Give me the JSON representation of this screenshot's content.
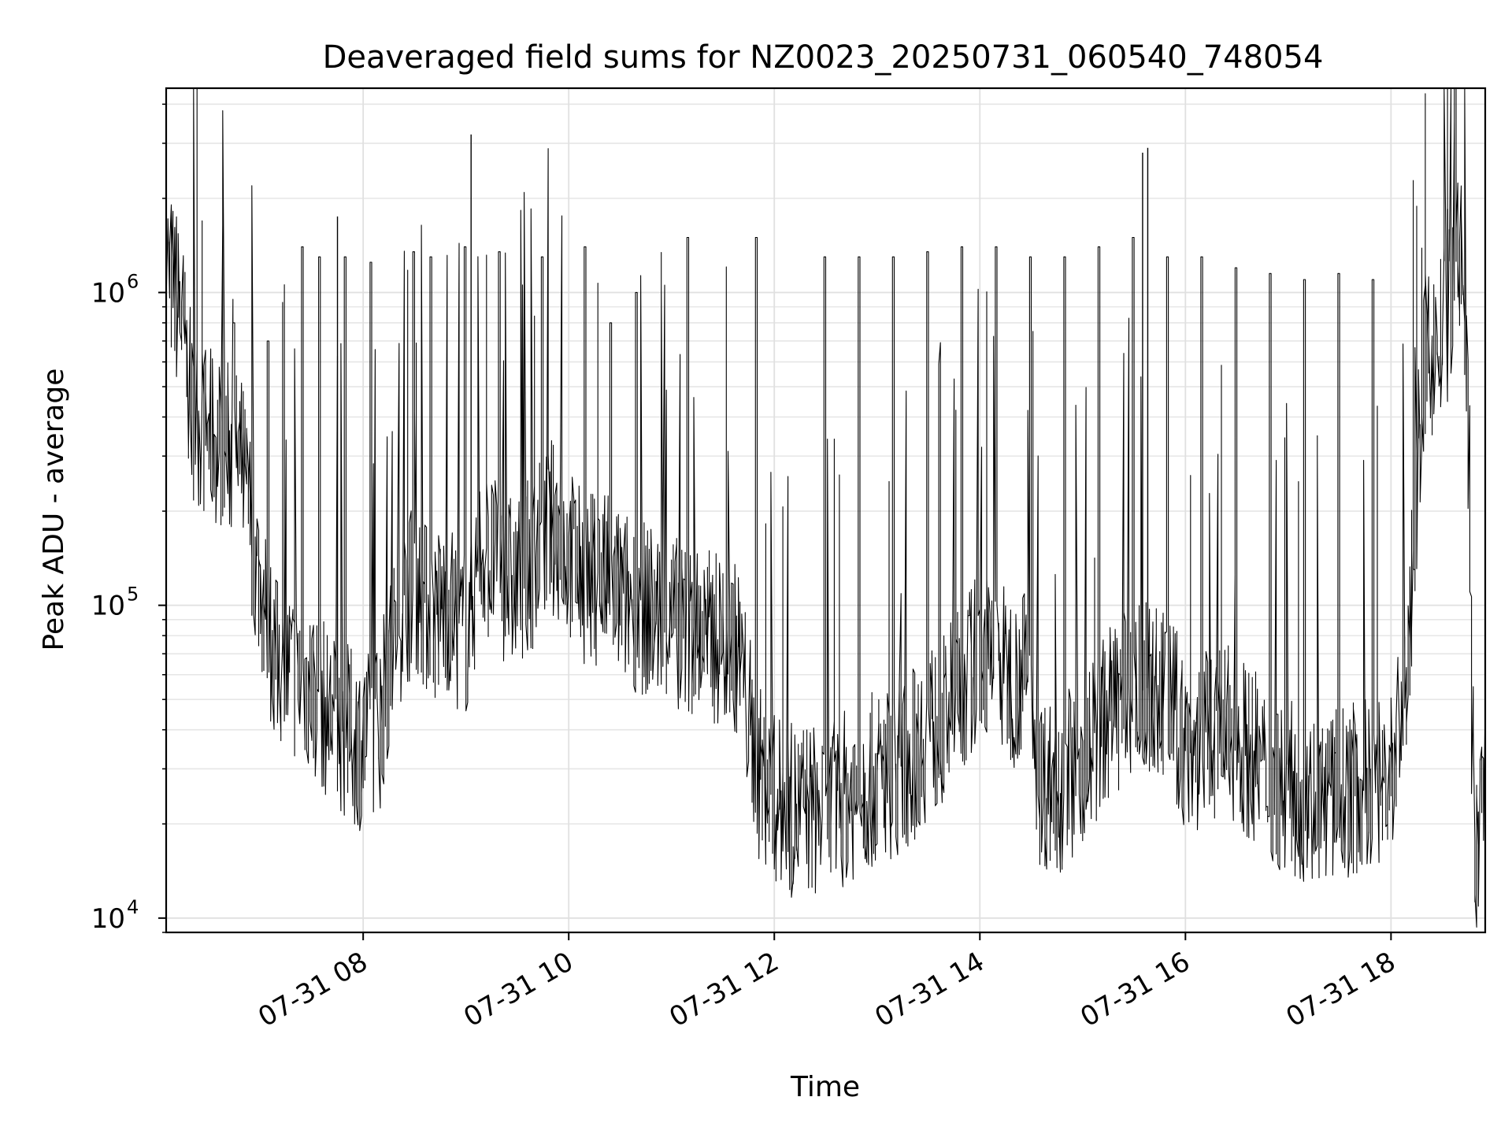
{
  "chart_data": {
    "type": "line",
    "title": "Deaveraged field sums for NZ0023_20250731_060540_748054",
    "xlabel": "Time",
    "ylabel": "Peak ADU - average",
    "yscale": "log",
    "ylim": [
      9000,
      4500000
    ],
    "xlim": [
      "2025-07-31 06:05",
      "2025-07-31 18:55"
    ],
    "grid": true,
    "x_ticks": [
      {
        "label": "07-31 08",
        "t": "2025-07-31 08:00"
      },
      {
        "label": "07-31 10",
        "t": "2025-07-31 10:00"
      },
      {
        "label": "07-31 12",
        "t": "2025-07-31 12:00"
      },
      {
        "label": "07-31 14",
        "t": "2025-07-31 14:00"
      },
      {
        "label": "07-31 16",
        "t": "2025-07-31 16:00"
      },
      {
        "label": "07-31 18",
        "t": "2025-07-31 18:00"
      }
    ],
    "y_ticks": [
      {
        "base": "10",
        "exp": "4",
        "value": 10000
      },
      {
        "base": "10",
        "exp": "5",
        "value": 100000
      },
      {
        "base": "10",
        "exp": "6",
        "value": 1000000
      }
    ],
    "series": [
      {
        "color": "#000000",
        "points": [
          [
            "2025-07-31 06:05",
            1200000
          ],
          [
            "2025-07-31 06:10",
            1050000
          ],
          [
            "2025-07-31 06:15",
            800000
          ],
          [
            "2025-07-31 06:20",
            420000
          ],
          [
            "2025-07-31 06:30",
            350000
          ],
          [
            "2025-07-31 06:40",
            330000
          ],
          [
            "2025-07-31 06:50",
            280000
          ],
          [
            "2025-07-31 07:00",
            120000
          ],
          [
            "2025-07-31 07:10",
            65000
          ],
          [
            "2025-07-31 07:20",
            60000
          ],
          [
            "2025-07-31 07:30",
            55000
          ],
          [
            "2025-07-31 07:40",
            45000
          ],
          [
            "2025-07-31 07:50",
            40000
          ],
          [
            "2025-07-31 08:00",
            36000
          ],
          [
            "2025-07-31 08:10",
            42000
          ],
          [
            "2025-07-31 08:20",
            85000
          ],
          [
            "2025-07-31 08:30",
            120000
          ],
          [
            "2025-07-31 08:40",
            90000
          ],
          [
            "2025-07-31 08:50",
            100000
          ],
          [
            "2025-07-31 09:00",
            80000
          ],
          [
            "2025-07-31 09:10",
            150000
          ],
          [
            "2025-07-31 09:20",
            130000
          ],
          [
            "2025-07-31 09:30",
            115000
          ],
          [
            "2025-07-31 09:40",
            140000
          ],
          [
            "2025-07-31 09:50",
            180000
          ],
          [
            "2025-07-31 10:00",
            150000
          ],
          [
            "2025-07-31 10:10",
            120000
          ],
          [
            "2025-07-31 10:20",
            125000
          ],
          [
            "2025-07-31 10:30",
            110000
          ],
          [
            "2025-07-31 10:40",
            100000
          ],
          [
            "2025-07-31 10:50",
            95000
          ],
          [
            "2025-07-31 11:00",
            90000
          ],
          [
            "2025-07-31 11:10",
            85000
          ],
          [
            "2025-07-31 11:20",
            80000
          ],
          [
            "2025-07-31 11:30",
            78000
          ],
          [
            "2025-07-31 11:40",
            72000
          ],
          [
            "2025-07-31 11:50",
            30000
          ],
          [
            "2025-07-31 12:00",
            24000
          ],
          [
            "2025-07-31 12:10",
            22000
          ],
          [
            "2025-07-31 12:20",
            23000
          ],
          [
            "2025-07-31 12:30",
            21000
          ],
          [
            "2025-07-31 12:40",
            24000
          ],
          [
            "2025-07-31 12:50",
            26000
          ],
          [
            "2025-07-31 13:00",
            28000
          ],
          [
            "2025-07-31 13:10",
            30000
          ],
          [
            "2025-07-31 13:20",
            32000
          ],
          [
            "2025-07-31 13:30",
            40000
          ],
          [
            "2025-07-31 13:40",
            42000
          ],
          [
            "2025-07-31 13:50",
            55000
          ],
          [
            "2025-07-31 14:00",
            70000
          ],
          [
            "2025-07-31 14:10",
            65000
          ],
          [
            "2025-07-31 14:20",
            58000
          ],
          [
            "2025-07-31 14:30",
            60000
          ],
          [
            "2025-07-31 14:35",
            28000
          ],
          [
            "2025-07-31 14:45",
            26000
          ],
          [
            "2025-07-31 15:00",
            32000
          ],
          [
            "2025-07-31 15:10",
            40000
          ],
          [
            "2025-07-31 15:20",
            48000
          ],
          [
            "2025-07-31 15:30",
            52000
          ],
          [
            "2025-07-31 15:40",
            55000
          ],
          [
            "2025-07-31 15:50",
            50000
          ],
          [
            "2025-07-31 15:55",
            45000
          ],
          [
            "2025-07-31 16:00",
            35000
          ],
          [
            "2025-07-31 16:10",
            36000
          ],
          [
            "2025-07-31 16:20",
            40000
          ],
          [
            "2025-07-31 16:30",
            38000
          ],
          [
            "2025-07-31 16:40",
            33000
          ],
          [
            "2025-07-31 16:50",
            28000
          ],
          [
            "2025-07-31 17:00",
            26000
          ],
          [
            "2025-07-31 17:10",
            25000
          ],
          [
            "2025-07-31 17:20",
            24000
          ],
          [
            "2025-07-31 17:30",
            25000
          ],
          [
            "2025-07-31 17:40",
            26000
          ],
          [
            "2025-07-31 17:50",
            27000
          ],
          [
            "2025-07-31 18:00",
            28000
          ],
          [
            "2025-07-31 18:10",
            60000
          ],
          [
            "2025-07-31 18:15",
            200000
          ],
          [
            "2025-07-31 18:20",
            600000
          ],
          [
            "2025-07-31 18:30",
            700000
          ],
          [
            "2025-07-31 18:35",
            900000
          ],
          [
            "2025-07-31 18:40",
            1500000
          ],
          [
            "2025-07-31 18:45",
            600000
          ],
          [
            "2025-07-31 18:48",
            40000
          ],
          [
            "2025-07-31 18:50",
            15000
          ],
          [
            "2025-07-31 18:53",
            24000
          ],
          [
            "2025-07-31 18:55",
            28000
          ]
        ],
        "spikes": [
          [
            "2025-07-31 06:45",
            800000
          ],
          [
            "2025-07-31 07:05",
            700000
          ],
          [
            "2025-07-31 07:25",
            1400000
          ],
          [
            "2025-07-31 07:35",
            1300000
          ],
          [
            "2025-07-31 07:50",
            1300000
          ],
          [
            "2025-07-31 08:05",
            1250000
          ],
          [
            "2025-07-31 08:30",
            1350000
          ],
          [
            "2025-07-31 08:40",
            1300000
          ],
          [
            "2025-07-31 09:00",
            1400000
          ],
          [
            "2025-07-31 09:20",
            1350000
          ],
          [
            "2025-07-31 09:45",
            1300000
          ],
          [
            "2025-07-31 10:10",
            1400000
          ],
          [
            "2025-07-31 10:25",
            800000
          ],
          [
            "2025-07-31 10:40",
            1000000
          ],
          [
            "2025-07-31 11:10",
            1500000
          ],
          [
            "2025-07-31 11:50",
            1500000
          ],
          [
            "2025-07-31 12:30",
            1300000
          ],
          [
            "2025-07-31 12:50",
            1300000
          ],
          [
            "2025-07-31 13:10",
            1300000
          ],
          [
            "2025-07-31 13:30",
            1350000
          ],
          [
            "2025-07-31 13:50",
            1400000
          ],
          [
            "2025-07-31 14:10",
            1400000
          ],
          [
            "2025-07-31 14:30",
            1300000
          ],
          [
            "2025-07-31 14:50",
            1300000
          ],
          [
            "2025-07-31 15:10",
            1400000
          ],
          [
            "2025-07-31 15:30",
            1500000
          ],
          [
            "2025-07-31 15:50",
            1300000
          ],
          [
            "2025-07-31 16:10",
            1300000
          ],
          [
            "2025-07-31 16:30",
            1200000
          ],
          [
            "2025-07-31 16:50",
            1150000
          ],
          [
            "2025-07-31 17:10",
            1100000
          ],
          [
            "2025-07-31 17:30",
            1150000
          ],
          [
            "2025-07-31 17:50",
            1100000
          ]
        ],
        "peaks": [
          [
            "2025-07-31 09:03",
            3200000
          ],
          [
            "2025-07-31 15:35",
            2800000
          ],
          [
            "2025-07-31 15:38",
            2900000
          ],
          [
            "2025-07-31 07:45",
            1750000
          ],
          [
            "2025-07-31 18:33",
            1850000
          ]
        ]
      }
    ]
  }
}
